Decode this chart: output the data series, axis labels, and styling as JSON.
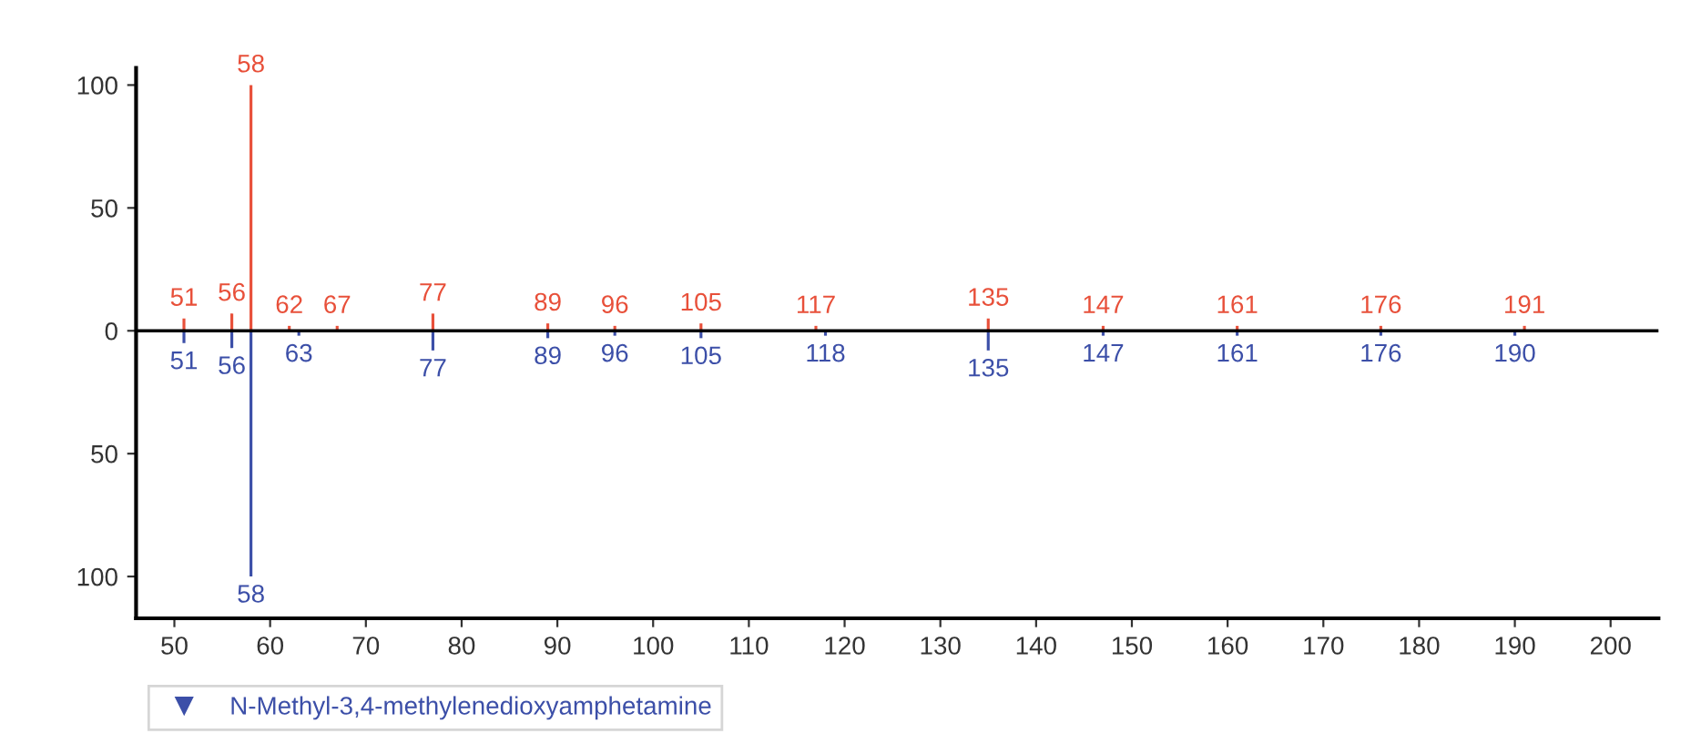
{
  "chart_data": {
    "type": "bar",
    "series": [
      {
        "color": "#e8503a",
        "x": [
          51,
          56,
          58,
          62,
          67,
          77,
          89,
          96,
          105,
          117,
          135,
          147,
          161,
          176,
          191
        ],
        "values": [
          5,
          7,
          100,
          2,
          2,
          7,
          3,
          2,
          3,
          2,
          5,
          2,
          2,
          2,
          2
        ]
      },
      {
        "name": "N-Methyl-3,4-methylenedioxyamphetamine",
        "color": "#3c4fa8",
        "x": [
          51,
          56,
          58,
          63,
          77,
          89,
          96,
          105,
          118,
          135,
          147,
          161,
          176,
          190
        ],
        "values": [
          -5,
          -7,
          -100,
          -2,
          -8,
          -3,
          -2,
          -3,
          -2,
          -8,
          -2,
          -2,
          -2,
          -2
        ]
      }
    ],
    "annotations": [
      {
        "text": "51",
        "x": 51,
        "y": 5
      },
      {
        "text": "56",
        "x": 56,
        "y": 7
      },
      {
        "text": "58",
        "x": 58,
        "y": 100
      },
      {
        "text": "62",
        "x": 62,
        "y": 2
      },
      {
        "text": "67",
        "x": 67,
        "y": 2
      },
      {
        "text": "77",
        "x": 77,
        "y": 7
      },
      {
        "text": "89",
        "x": 89,
        "y": 3
      },
      {
        "text": "96",
        "x": 96,
        "y": 2
      },
      {
        "text": "105",
        "x": 105,
        "y": 3
      },
      {
        "text": "117",
        "x": 117,
        "y": 2
      },
      {
        "text": "135",
        "x": 135,
        "y": 5
      },
      {
        "text": "147",
        "x": 147,
        "y": 2
      },
      {
        "text": "161",
        "x": 161,
        "y": 2
      },
      {
        "text": "176",
        "x": 176,
        "y": 2
      },
      {
        "text": "191",
        "x": 191,
        "y": 2
      },
      {
        "text": "51",
        "x": 51,
        "y": -5
      },
      {
        "text": "56",
        "x": 56,
        "y": -7
      },
      {
        "text": "58",
        "x": 58,
        "y": -100
      },
      {
        "text": "63",
        "x": 63,
        "y": -2
      },
      {
        "text": "77",
        "x": 77,
        "y": -8
      },
      {
        "text": "89",
        "x": 89,
        "y": -3
      },
      {
        "text": "96",
        "x": 96,
        "y": -2
      },
      {
        "text": "105",
        "x": 105,
        "y": -3
      },
      {
        "text": "118",
        "x": 118,
        "y": -2
      },
      {
        "text": "135",
        "x": 135,
        "y": -8
      },
      {
        "text": "147",
        "x": 147,
        "y": -2
      },
      {
        "text": "161",
        "x": 161,
        "y": -2
      },
      {
        "text": "176",
        "x": 176,
        "y": -2
      },
      {
        "text": "190",
        "x": 190,
        "y": -2
      }
    ],
    "xlim": [
      46,
      205
    ],
    "xticks": [
      50,
      60,
      70,
      80,
      90,
      100,
      110,
      120,
      130,
      140,
      150,
      160,
      170,
      180,
      190,
      200
    ],
    "ylim": [
      -117,
      107
    ],
    "yticks": [
      {
        "value": -100,
        "label": "100"
      },
      {
        "value": -50,
        "label": "50"
      },
      0,
      50,
      100
    ],
    "ref_lines": [
      {
        "axis": "y",
        "value": 0,
        "color": "#000000"
      }
    ],
    "grid": false,
    "legend": "bottom"
  }
}
